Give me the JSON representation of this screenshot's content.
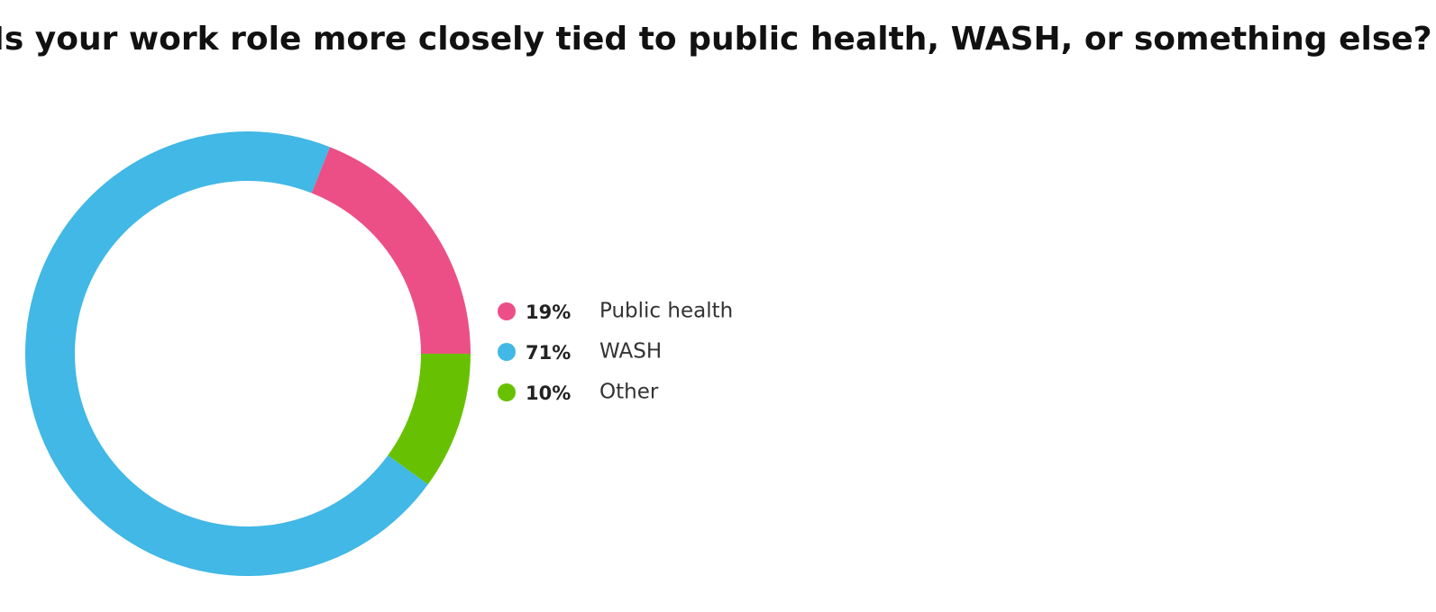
{
  "chart_data": {
    "type": "donut",
    "title": "Is your work role more closely tied to public health, WASH, or something else?",
    "categories": [
      "Public health",
      "WASH",
      "Other"
    ],
    "values": [
      19,
      71,
      10
    ],
    "value_labels": [
      "19%",
      "71%",
      "10%"
    ],
    "colors": [
      "#ec4f86",
      "#41b8e5",
      "#67c102"
    ]
  }
}
